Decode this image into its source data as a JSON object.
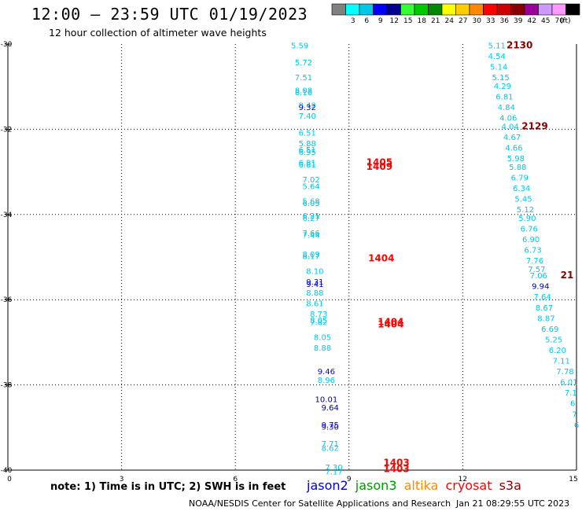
{
  "header": {
    "title": "12:00 – 23:59 UTC 01/19/2023",
    "subtitle": "12 hour collection of altimeter wave heights"
  },
  "legend": {
    "unit": "(ft)",
    "bins": [
      {
        "label": "",
        "color": "#808080"
      },
      {
        "label": "3",
        "color": "#00ffff"
      },
      {
        "label": "6",
        "color": "#00c8e6"
      },
      {
        "label": "9",
        "color": "#0000ff"
      },
      {
        "label": "12",
        "color": "#000090"
      },
      {
        "label": "15",
        "color": "#33ff33"
      },
      {
        "label": "18",
        "color": "#00c800"
      },
      {
        "label": "21",
        "color": "#008800"
      },
      {
        "label": "24",
        "color": "#ffff00"
      },
      {
        "label": "27",
        "color": "#ffcc00"
      },
      {
        "label": "30",
        "color": "#ff8800"
      },
      {
        "label": "33",
        "color": "#ff0000"
      },
      {
        "label": "36",
        "color": "#cc0000"
      },
      {
        "label": "39",
        "color": "#880000"
      },
      {
        "label": "42",
        "color": "#990099"
      },
      {
        "label": "45",
        "color": "#cc99ff"
      },
      {
        "label": "70",
        "color": "#ff99ff"
      },
      {
        "label": "",
        "color": "#000000"
      }
    ]
  },
  "axes": {
    "x_ticks": [
      "0",
      "3",
      "6",
      "9",
      "12",
      "15"
    ],
    "y_ticks": [
      "-30",
      "-32",
      "-34",
      "-36",
      "-38",
      "-40"
    ]
  },
  "footer": {
    "note": "note:  1) Time is in UTC; 2) SWH is in feet",
    "satellites": [
      {
        "name": "jason2",
        "color": "#0000cc"
      },
      {
        "name": "jason3",
        "color": "#009900"
      },
      {
        "name": "altika",
        "color": "#ff8800"
      },
      {
        "name": "cryosat",
        "color": "#ff0000"
      },
      {
        "name": "s3a",
        "color": "#880000"
      }
    ],
    "credit": "NOAA/NESDIS Center for Satellite Applications and Research",
    "timestamp": "Jan 21 08:29:55 UTC 2023"
  },
  "chart_data": {
    "type": "scatter",
    "title": "12:00 – 23:59 UTC 01/19/2023",
    "subtitle": "12 hour collection of altimeter wave heights",
    "xlabel": "",
    "ylabel": "",
    "xlim": [
      0,
      15
    ],
    "ylim": [
      -40,
      -30
    ],
    "grid": true,
    "track1": [
      {
        "x": 7.7,
        "y": -30.1,
        "v": "5.59",
        "c": "#00c8e6"
      },
      {
        "x": 7.8,
        "y": -30.5,
        "v": "5.72",
        "c": "#00c8e6"
      },
      {
        "x": 7.8,
        "y": -30.85,
        "v": "7.51",
        "c": "#00c8e6"
      },
      {
        "x": 7.8,
        "y": -31.15,
        "v": "8.08",
        "c": "#00c8e6"
      },
      {
        "x": 7.8,
        "y": -31.2,
        "v": "8.16",
        "c": "#00c8e6"
      },
      {
        "x": 7.9,
        "y": -31.5,
        "v": "8.42",
        "c": "#00c8e6"
      },
      {
        "x": 7.9,
        "y": -31.55,
        "v": "9.32",
        "c": "#0000ff"
      },
      {
        "x": 7.9,
        "y": -31.75,
        "v": "7.40",
        "c": "#00c8e6"
      },
      {
        "x": 7.9,
        "y": -32.15,
        "v": "6.51",
        "c": "#00c8e6"
      },
      {
        "x": 7.9,
        "y": -32.4,
        "v": "5.88",
        "c": "#00c8e6"
      },
      {
        "x": 7.9,
        "y": -32.55,
        "v": "6.51",
        "c": "#00c8e6"
      },
      {
        "x": 7.9,
        "y": -32.6,
        "v": "6.95",
        "c": "#00c8e6"
      },
      {
        "x": 7.9,
        "y": -32.85,
        "v": "6.81",
        "c": "#00c8e6"
      },
      {
        "x": 7.9,
        "y": -32.9,
        "v": "6.81",
        "c": "#00c8e6"
      },
      {
        "x": 8.0,
        "y": -33.25,
        "v": "7.02",
        "c": "#00c8e6"
      },
      {
        "x": 8.0,
        "y": -33.4,
        "v": "5.64",
        "c": "#00c8e6"
      },
      {
        "x": 8.0,
        "y": -33.75,
        "v": "5.68",
        "c": "#00c8e6"
      },
      {
        "x": 8.0,
        "y": -33.8,
        "v": "6.05",
        "c": "#00c8e6"
      },
      {
        "x": 8.0,
        "y": -34.1,
        "v": "6.21",
        "c": "#00c8e6"
      },
      {
        "x": 8.0,
        "y": -34.15,
        "v": "6.27",
        "c": "#00c8e6"
      },
      {
        "x": 8.0,
        "y": -34.5,
        "v": "7.66",
        "c": "#00c8e6"
      },
      {
        "x": 8.0,
        "y": -34.55,
        "v": "7.44",
        "c": "#00c8e6"
      },
      {
        "x": 8.0,
        "y": -35.0,
        "v": "8.09",
        "c": "#00c8e6"
      },
      {
        "x": 8.0,
        "y": -35.05,
        "v": "8.17",
        "c": "#00c8e6"
      },
      {
        "x": 8.1,
        "y": -35.4,
        "v": "8.10",
        "c": "#00c8e6"
      },
      {
        "x": 8.1,
        "y": -35.65,
        "v": "9.31",
        "c": "#0000ff"
      },
      {
        "x": 8.1,
        "y": -35.7,
        "v": "9.41",
        "c": "#0000ff"
      },
      {
        "x": 8.1,
        "y": -35.9,
        "v": "8.88",
        "c": "#00c8e6"
      },
      {
        "x": 8.1,
        "y": -36.15,
        "v": "8.61",
        "c": "#00c8e6"
      },
      {
        "x": 8.2,
        "y": -36.4,
        "v": "8.73",
        "c": "#00c8e6"
      },
      {
        "x": 8.2,
        "y": -36.55,
        "v": "8.05",
        "c": "#00c8e6"
      },
      {
        "x": 8.2,
        "y": -36.6,
        "v": "7.82",
        "c": "#00c8e6"
      },
      {
        "x": 8.3,
        "y": -36.95,
        "v": "8.05",
        "c": "#00c8e6"
      },
      {
        "x": 8.3,
        "y": -37.2,
        "v": "8.88",
        "c": "#00c8e6"
      },
      {
        "x": 8.4,
        "y": -37.75,
        "v": "9.46",
        "c": "#0000ff"
      },
      {
        "x": 8.4,
        "y": -37.95,
        "v": "8.96",
        "c": "#00c8e6"
      },
      {
        "x": 8.4,
        "y": -38.4,
        "v": "10.01",
        "c": "#000090"
      },
      {
        "x": 8.5,
        "y": -38.6,
        "v": "9.64",
        "c": "#000090"
      },
      {
        "x": 8.5,
        "y": -39.0,
        "v": "9.75",
        "c": "#0000ff"
      },
      {
        "x": 8.5,
        "y": -39.05,
        "v": "9.30",
        "c": "#0000ff"
      },
      {
        "x": 8.5,
        "y": -39.45,
        "v": "7.71",
        "c": "#00c8e6"
      },
      {
        "x": 8.5,
        "y": -39.55,
        "v": "8.62",
        "c": "#00c8e6"
      },
      {
        "x": 8.6,
        "y": -40.0,
        "v": "7.30",
        "c": "#00c8e6"
      },
      {
        "x": 8.6,
        "y": -40.1,
        "v": "7.17",
        "c": "#00c8e6"
      }
    ],
    "track2": [
      {
        "x": 12.9,
        "y": -30.1,
        "v": "5.11",
        "c": "#00c8e6"
      },
      {
        "x": 12.9,
        "y": -30.35,
        "v": "4.54",
        "c": "#00c8e6"
      },
      {
        "x": 12.95,
        "y": -30.6,
        "v": "5.14",
        "c": "#00c8e6"
      },
      {
        "x": 13.0,
        "y": -30.85,
        "v": "5.15",
        "c": "#00c8e6"
      },
      {
        "x": 13.05,
        "y": -31.05,
        "v": "4.29",
        "c": "#00c8e6"
      },
      {
        "x": 13.1,
        "y": -31.3,
        "v": "6.81",
        "c": "#00c8e6"
      },
      {
        "x": 13.15,
        "y": -31.55,
        "v": "4.84",
        "c": "#00c8e6"
      },
      {
        "x": 13.2,
        "y": -31.8,
        "v": "4.06",
        "c": "#00c8e6"
      },
      {
        "x": 13.25,
        "y": -32.0,
        "v": "4.04",
        "c": "#00c8e6"
      },
      {
        "x": 13.3,
        "y": -32.25,
        "v": "4.67",
        "c": "#00c8e6"
      },
      {
        "x": 13.35,
        "y": -32.5,
        "v": "4.66",
        "c": "#00c8e6"
      },
      {
        "x": 13.4,
        "y": -32.75,
        "v": "5.98",
        "c": "#00c8e6"
      },
      {
        "x": 13.45,
        "y": -32.95,
        "v": "5.88",
        "c": "#00c8e6"
      },
      {
        "x": 13.5,
        "y": -33.2,
        "v": "6.79",
        "c": "#00c8e6"
      },
      {
        "x": 13.55,
        "y": -33.45,
        "v": "6.34",
        "c": "#00c8e6"
      },
      {
        "x": 13.6,
        "y": -33.7,
        "v": "5.45",
        "c": "#00c8e6"
      },
      {
        "x": 13.65,
        "y": -33.95,
        "v": "5.12",
        "c": "#00c8e6"
      },
      {
        "x": 13.7,
        "y": -34.15,
        "v": "5.90",
        "c": "#00c8e6"
      },
      {
        "x": 13.75,
        "y": -34.4,
        "v": "6.76",
        "c": "#00c8e6"
      },
      {
        "x": 13.8,
        "y": -34.65,
        "v": "6.90",
        "c": "#00c8e6"
      },
      {
        "x": 13.85,
        "y": -34.9,
        "v": "6.73",
        "c": "#00c8e6"
      },
      {
        "x": 13.9,
        "y": -35.15,
        "v": "7.76",
        "c": "#00c8e6"
      },
      {
        "x": 13.95,
        "y": -35.35,
        "v": "7.57",
        "c": "#00c8e6"
      },
      {
        "x": 14.0,
        "y": -35.5,
        "v": "7.06",
        "c": "#00c8e6"
      },
      {
        "x": 14.05,
        "y": -35.75,
        "v": "9.94",
        "c": "#000090"
      },
      {
        "x": 14.1,
        "y": -36.0,
        "v": "7.64",
        "c": "#00c8e6"
      },
      {
        "x": 14.15,
        "y": -36.25,
        "v": "8.67",
        "c": "#00c8e6"
      },
      {
        "x": 14.2,
        "y": -36.5,
        "v": "8.87",
        "c": "#00c8e6"
      },
      {
        "x": 14.3,
        "y": -36.75,
        "v": "6.69",
        "c": "#00c8e6"
      },
      {
        "x": 14.4,
        "y": -37.0,
        "v": "5.25",
        "c": "#00c8e6"
      },
      {
        "x": 14.5,
        "y": -37.25,
        "v": "6.20",
        "c": "#00c8e6"
      },
      {
        "x": 14.6,
        "y": -37.5,
        "v": "7.11",
        "c": "#00c8e6"
      },
      {
        "x": 14.7,
        "y": -37.75,
        "v": "7.78",
        "c": "#00c8e6"
      },
      {
        "x": 14.8,
        "y": -38.0,
        "v": "6.01",
        "c": "#00c8e6"
      },
      {
        "x": 14.85,
        "y": -38.25,
        "v": "7.1",
        "c": "#00c8e6"
      },
      {
        "x": 14.9,
        "y": -38.5,
        "v": "6",
        "c": "#00c8e6"
      },
      {
        "x": 14.95,
        "y": -38.75,
        "v": "7",
        "c": "#00c8e6"
      },
      {
        "x": 15.0,
        "y": -39.0,
        "v": "6",
        "c": "#00c8e6"
      }
    ],
    "time_labels": [
      {
        "x": 9.8,
        "y": -32.85,
        "v": "1405",
        "c": "#ff0000"
      },
      {
        "x": 9.8,
        "y": -32.95,
        "v": "1409",
        "c": "#ff0000"
      },
      {
        "x": 9.85,
        "y": -35.1,
        "v": "1404",
        "c": "#ff0000"
      },
      {
        "x": 10.1,
        "y": -36.6,
        "v": "1404",
        "c": "#ff0000"
      },
      {
        "x": 10.1,
        "y": -36.65,
        "v": "1404",
        "c": "#ff0000"
      },
      {
        "x": 10.25,
        "y": -39.9,
        "v": "1403",
        "c": "#ff0000"
      },
      {
        "x": 10.25,
        "y": -40.05,
        "v": "1403",
        "c": "#ff0000"
      },
      {
        "x": 13.5,
        "y": -30.1,
        "v": "2130",
        "c": "#880000"
      },
      {
        "x": 13.9,
        "y": -32.0,
        "v": "2129",
        "c": "#880000"
      },
      {
        "x": 14.75,
        "y": -35.5,
        "v": "21",
        "c": "#880000"
      }
    ]
  }
}
